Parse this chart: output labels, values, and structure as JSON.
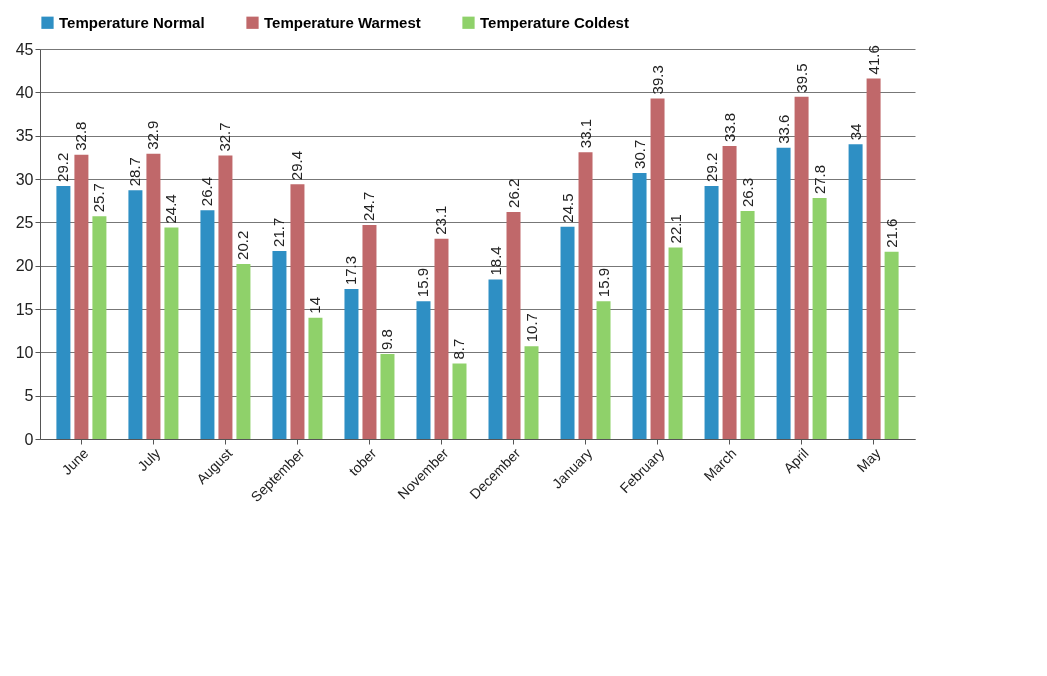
{
  "chart_data": {
    "type": "bar",
    "categories": [
      "June",
      "July",
      "August",
      "September",
      "tober",
      "November",
      "December",
      "January",
      "February",
      "March",
      "April",
      "May"
    ],
    "series": [
      {
        "name": "Temperature Normal",
        "color": "#2e8fc4",
        "values": [
          29.2,
          28.7,
          26.4,
          21.7,
          17.3,
          15.9,
          18.4,
          24.5,
          30.7,
          29.2,
          33.6,
          34
        ]
      },
      {
        "name": "Temperature Warmest",
        "color": "#c0686a",
        "values": [
          32.8,
          32.9,
          32.7,
          29.4,
          24.7,
          23.1,
          26.2,
          33.1,
          39.3,
          33.8,
          39.5,
          41.6
        ]
      },
      {
        "name": "Temperature Coldest",
        "color": "#8fd16a",
        "values": [
          25.7,
          24.4,
          20.2,
          14,
          9.8,
          8.7,
          10.7,
          15.9,
          22.1,
          26.3,
          27.8,
          21.6
        ]
      }
    ],
    "ylim": [
      0,
      45
    ],
    "yticks": [
      0,
      5,
      10,
      15,
      20,
      25,
      30,
      35,
      40,
      45
    ],
    "grid": "y",
    "legend": "top",
    "data_labels": true
  }
}
